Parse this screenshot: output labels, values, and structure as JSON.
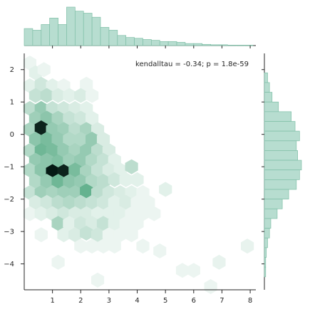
{
  "chart_data": {
    "type": "hexbin",
    "annotation": "kendalltau = -0.34; p = 1.8e-59",
    "xlim": [
      0,
      8.2
    ],
    "ylim": [
      -4.8,
      2.5
    ],
    "x_ticks": [
      "1",
      "2",
      "3",
      "4",
      "5",
      "6",
      "7",
      "8"
    ],
    "y_ticks": [
      "2",
      "1",
      "0",
      "−1",
      "−2",
      "−3",
      "−4"
    ],
    "x_tick_values": [
      1,
      2,
      3,
      4,
      5,
      6,
      7,
      8
    ],
    "y_tick_values": [
      2,
      1,
      0,
      -1,
      -2,
      -3,
      -4
    ],
    "colors": {
      "hex_base": "#3f9f73",
      "hist_fill": "#b7ddd0",
      "hist_edge": "#7fbfa7",
      "axis": "#262626"
    },
    "hexbin": {
      "cells": [
        {
          "x": 0.2,
          "y": 2.2,
          "v": 0.1
        },
        {
          "x": 0.4,
          "y": 1.9,
          "v": 0.15
        },
        {
          "x": 0.7,
          "y": 2.0,
          "v": 0.1
        },
        {
          "x": 0.2,
          "y": 1.5,
          "v": 0.15
        },
        {
          "x": 0.6,
          "y": 1.55,
          "v": 0.25
        },
        {
          "x": 1.0,
          "y": 1.5,
          "v": 0.15
        },
        {
          "x": 1.4,
          "y": 1.5,
          "v": 0.1
        },
        {
          "x": 2.2,
          "y": 1.55,
          "v": 0.1
        },
        {
          "x": 0.4,
          "y": 1.2,
          "v": 0.3
        },
        {
          "x": 0.8,
          "y": 1.2,
          "v": 0.35
        },
        {
          "x": 1.2,
          "y": 1.2,
          "v": 0.2
        },
        {
          "x": 1.6,
          "y": 1.2,
          "v": 0.15
        },
        {
          "x": 2.0,
          "y": 1.2,
          "v": 0.2
        },
        {
          "x": 2.4,
          "y": 1.2,
          "v": 0.1
        },
        {
          "x": 0.2,
          "y": 0.8,
          "v": 0.35
        },
        {
          "x": 0.6,
          "y": 0.8,
          "v": 0.55
        },
        {
          "x": 1.0,
          "y": 0.8,
          "v": 0.3
        },
        {
          "x": 1.4,
          "y": 0.8,
          "v": 0.25
        },
        {
          "x": 1.8,
          "y": 0.8,
          "v": 0.2
        },
        {
          "x": 2.2,
          "y": 0.8,
          "v": 0.15
        },
        {
          "x": 0.4,
          "y": 0.5,
          "v": 0.5
        },
        {
          "x": 0.8,
          "y": 0.5,
          "v": 0.6
        },
        {
          "x": 1.2,
          "y": 0.5,
          "v": 0.45
        },
        {
          "x": 1.6,
          "y": 0.5,
          "v": 0.3
        },
        {
          "x": 2.0,
          "y": 0.5,
          "v": 0.25
        },
        {
          "x": 2.4,
          "y": 0.5,
          "v": 0.15
        },
        {
          "x": 0.2,
          "y": 0.15,
          "v": 0.45
        },
        {
          "x": 0.6,
          "y": 0.2,
          "v": 0.95
        },
        {
          "x": 1.0,
          "y": 0.15,
          "v": 0.55
        },
        {
          "x": 1.4,
          "y": 0.15,
          "v": 0.5
        },
        {
          "x": 1.8,
          "y": 0.15,
          "v": 0.35
        },
        {
          "x": 2.2,
          "y": 0.15,
          "v": 0.45
        },
        {
          "x": 2.6,
          "y": 0.15,
          "v": 0.2
        },
        {
          "x": 0.4,
          "y": -0.15,
          "v": 0.6
        },
        {
          "x": 0.8,
          "y": -0.15,
          "v": 0.7
        },
        {
          "x": 1.2,
          "y": -0.15,
          "v": 0.55
        },
        {
          "x": 1.6,
          "y": -0.15,
          "v": 0.4
        },
        {
          "x": 2.0,
          "y": -0.15,
          "v": 0.4
        },
        {
          "x": 2.4,
          "y": -0.15,
          "v": 0.55
        },
        {
          "x": 2.8,
          "y": -0.15,
          "v": 0.2
        },
        {
          "x": 0.2,
          "y": -0.5,
          "v": 0.4
        },
        {
          "x": 0.6,
          "y": -0.5,
          "v": 0.75
        },
        {
          "x": 1.0,
          "y": -0.5,
          "v": 0.7
        },
        {
          "x": 1.4,
          "y": -0.5,
          "v": 0.55
        },
        {
          "x": 1.8,
          "y": -0.5,
          "v": 0.45
        },
        {
          "x": 2.2,
          "y": -0.5,
          "v": 0.55
        },
        {
          "x": 2.6,
          "y": -0.5,
          "v": 0.35
        },
        {
          "x": 3.0,
          "y": -0.5,
          "v": 0.2
        },
        {
          "x": 0.4,
          "y": -0.8,
          "v": 0.55
        },
        {
          "x": 0.8,
          "y": -0.8,
          "v": 0.6
        },
        {
          "x": 1.2,
          "y": -0.85,
          "v": 0.65
        },
        {
          "x": 1.6,
          "y": -0.8,
          "v": 0.5
        },
        {
          "x": 2.0,
          "y": -0.8,
          "v": 0.55
        },
        {
          "x": 2.4,
          "y": -0.8,
          "v": 0.4
        },
        {
          "x": 2.8,
          "y": -0.8,
          "v": 0.3
        },
        {
          "x": 3.2,
          "y": -0.8,
          "v": 0.15
        },
        {
          "x": 0.2,
          "y": -1.1,
          "v": 0.4
        },
        {
          "x": 0.6,
          "y": -1.1,
          "v": 0.6
        },
        {
          "x": 1.0,
          "y": -1.15,
          "v": 1.0
        },
        {
          "x": 1.4,
          "y": -1.15,
          "v": 0.95
        },
        {
          "x": 1.8,
          "y": -1.1,
          "v": 0.7
        },
        {
          "x": 2.2,
          "y": -1.15,
          "v": 0.45
        },
        {
          "x": 2.6,
          "y": -1.1,
          "v": 0.3
        },
        {
          "x": 3.0,
          "y": -1.1,
          "v": 0.2
        },
        {
          "x": 3.4,
          "y": -1.1,
          "v": 0.15
        },
        {
          "x": 3.8,
          "y": -1.0,
          "v": 0.35
        },
        {
          "x": 0.4,
          "y": -1.45,
          "v": 0.4
        },
        {
          "x": 0.8,
          "y": -1.45,
          "v": 0.55
        },
        {
          "x": 1.2,
          "y": -1.45,
          "v": 0.75
        },
        {
          "x": 1.6,
          "y": -1.45,
          "v": 0.6
        },
        {
          "x": 2.0,
          "y": -1.45,
          "v": 0.55
        },
        {
          "x": 2.4,
          "y": -1.45,
          "v": 0.4
        },
        {
          "x": 2.8,
          "y": -1.45,
          "v": 0.35
        },
        {
          "x": 3.2,
          "y": -1.4,
          "v": 0.25
        },
        {
          "x": 3.6,
          "y": -1.4,
          "v": 0.15
        },
        {
          "x": 4.0,
          "y": -1.4,
          "v": 0.15
        },
        {
          "x": 0.2,
          "y": -1.8,
          "v": 0.3
        },
        {
          "x": 0.6,
          "y": -1.8,
          "v": 0.5
        },
        {
          "x": 1.0,
          "y": -1.8,
          "v": 0.45
        },
        {
          "x": 1.4,
          "y": -1.8,
          "v": 0.5
        },
        {
          "x": 1.8,
          "y": -1.8,
          "v": 0.5
        },
        {
          "x": 2.2,
          "y": -1.75,
          "v": 0.8
        },
        {
          "x": 2.6,
          "y": -1.8,
          "v": 0.35
        },
        {
          "x": 3.0,
          "y": -1.8,
          "v": 0.25
        },
        {
          "x": 3.4,
          "y": -1.8,
          "v": 0.2
        },
        {
          "x": 3.8,
          "y": -1.8,
          "v": 0.15
        },
        {
          "x": 4.2,
          "y": -1.8,
          "v": 0.1
        },
        {
          "x": 5.0,
          "y": -1.7,
          "v": 0.15
        },
        {
          "x": 0.4,
          "y": -2.1,
          "v": 0.2
        },
        {
          "x": 0.8,
          "y": -2.1,
          "v": 0.25
        },
        {
          "x": 1.2,
          "y": -2.1,
          "v": 0.35
        },
        {
          "x": 1.6,
          "y": -2.1,
          "v": 0.4
        },
        {
          "x": 2.0,
          "y": -2.1,
          "v": 0.35
        },
        {
          "x": 2.4,
          "y": -2.1,
          "v": 0.3
        },
        {
          "x": 2.8,
          "y": -2.1,
          "v": 0.25
        },
        {
          "x": 3.2,
          "y": -2.1,
          "v": 0.15
        },
        {
          "x": 3.6,
          "y": -2.1,
          "v": 0.2
        },
        {
          "x": 4.0,
          "y": -2.1,
          "v": 0.1
        },
        {
          "x": 4.4,
          "y": -2.1,
          "v": 0.1
        },
        {
          "x": 0.2,
          "y": -2.45,
          "v": 0.1
        },
        {
          "x": 0.6,
          "y": -2.45,
          "v": 0.15
        },
        {
          "x": 1.0,
          "y": -2.45,
          "v": 0.2
        },
        {
          "x": 1.4,
          "y": -2.45,
          "v": 0.25
        },
        {
          "x": 1.8,
          "y": -2.45,
          "v": 0.2
        },
        {
          "x": 2.2,
          "y": -2.45,
          "v": 0.2
        },
        {
          "x": 2.6,
          "y": -2.45,
          "v": 0.15
        },
        {
          "x": 3.0,
          "y": -2.45,
          "v": 0.15
        },
        {
          "x": 3.4,
          "y": -2.45,
          "v": 0.15
        },
        {
          "x": 3.8,
          "y": -2.45,
          "v": 0.1
        },
        {
          "x": 4.2,
          "y": -2.45,
          "v": 0.1
        },
        {
          "x": 4.6,
          "y": -2.45,
          "v": 0.1
        },
        {
          "x": 1.2,
          "y": -2.75,
          "v": 0.45
        },
        {
          "x": 1.6,
          "y": -2.75,
          "v": 0.15
        },
        {
          "x": 2.0,
          "y": -2.75,
          "v": 0.25
        },
        {
          "x": 2.4,
          "y": -2.75,
          "v": 0.2
        },
        {
          "x": 2.8,
          "y": -2.75,
          "v": 0.3
        },
        {
          "x": 3.2,
          "y": -2.75,
          "v": 0.15
        },
        {
          "x": 3.6,
          "y": -2.75,
          "v": 0.1
        },
        {
          "x": 4.0,
          "y": -2.75,
          "v": 0.1
        },
        {
          "x": 0.6,
          "y": -3.1,
          "v": 0.1
        },
        {
          "x": 1.4,
          "y": -3.1,
          "v": 0.15
        },
        {
          "x": 1.8,
          "y": -3.1,
          "v": 0.2
        },
        {
          "x": 2.2,
          "y": -3.05,
          "v": 0.3
        },
        {
          "x": 2.6,
          "y": -3.1,
          "v": 0.25
        },
        {
          "x": 3.0,
          "y": -3.1,
          "v": 0.1
        },
        {
          "x": 3.4,
          "y": -3.1,
          "v": 0.1
        },
        {
          "x": 3.8,
          "y": -3.1,
          "v": 0.1
        },
        {
          "x": 2.0,
          "y": -3.45,
          "v": 0.1
        },
        {
          "x": 2.4,
          "y": -3.45,
          "v": 0.1
        },
        {
          "x": 2.8,
          "y": -3.45,
          "v": 0.1
        },
        {
          "x": 3.2,
          "y": -3.45,
          "v": 0.1
        },
        {
          "x": 4.2,
          "y": -3.45,
          "v": 0.1
        },
        {
          "x": 4.8,
          "y": -3.6,
          "v": 0.1
        },
        {
          "x": 7.9,
          "y": -3.45,
          "v": 0.12
        },
        {
          "x": 1.2,
          "y": -3.95,
          "v": 0.1
        },
        {
          "x": 6.9,
          "y": -3.95,
          "v": 0.12
        },
        {
          "x": 5.6,
          "y": -4.2,
          "v": 0.1
        },
        {
          "x": 6.0,
          "y": -4.2,
          "v": 0.1
        },
        {
          "x": 2.6,
          "y": -4.5,
          "v": 0.1
        },
        {
          "x": 6.6,
          "y": -4.7,
          "v": 0.1
        }
      ]
    },
    "marginal_x": {
      "bin_edges": [
        0.0,
        0.3,
        0.6,
        0.9,
        1.2,
        1.5,
        1.8,
        2.1,
        2.4,
        2.7,
        3.0,
        3.3,
        3.6,
        3.9,
        4.2,
        4.5,
        4.8,
        5.1,
        5.4,
        5.7,
        6.0,
        6.3,
        6.6,
        6.9,
        7.2,
        7.5,
        7.8,
        8.1
      ],
      "counts": [
        42,
        38,
        52,
        68,
        52,
        95,
        85,
        80,
        70,
        45,
        38,
        25,
        20,
        18,
        15,
        13,
        10,
        10,
        8,
        5,
        5,
        3,
        2,
        2,
        1,
        1,
        1
      ]
    },
    "marginal_y": {
      "bin_edges": [
        2.5,
        2.2,
        1.9,
        1.6,
        1.3,
        1.0,
        0.7,
        0.4,
        0.1,
        -0.2,
        -0.5,
        -0.8,
        -1.1,
        -1.4,
        -1.7,
        -2.0,
        -2.3,
        -2.6,
        -2.9,
        -3.2,
        -3.5,
        -3.8,
        -4.1,
        -4.4
      ],
      "counts": [
        0,
        0,
        5,
        8,
        12,
        22,
        42,
        48,
        55,
        50,
        52,
        58,
        55,
        50,
        38,
        28,
        20,
        10,
        8,
        5,
        3,
        2,
        2
      ]
    }
  }
}
